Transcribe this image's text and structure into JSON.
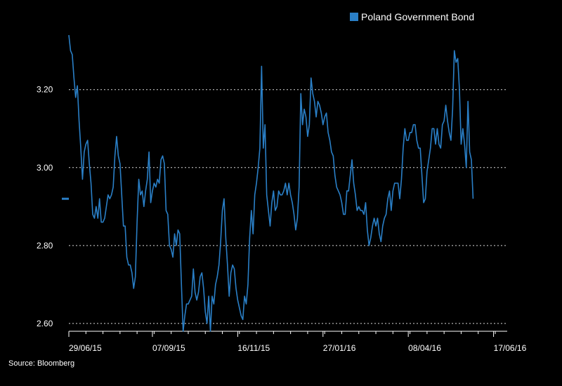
{
  "chart_data": {
    "type": "line",
    "grid": true,
    "legend_position": "top-right",
    "source": "Source: Bloomberg",
    "series": [
      {
        "name": "Poland Government Bond",
        "color": "#2a7fc6",
        "last_value": 2.92,
        "values": [
          3.34,
          3.3,
          3.29,
          3.23,
          3.18,
          3.21,
          3.12,
          3.05,
          2.97,
          3.04,
          3.06,
          3.07,
          3.01,
          2.96,
          2.88,
          2.87,
          2.9,
          2.87,
          2.92,
          2.86,
          2.86,
          2.87,
          2.9,
          2.93,
          2.92,
          2.93,
          2.95,
          3.03,
          3.08,
          3.03,
          3.01,
          2.93,
          2.85,
          2.85,
          2.77,
          2.75,
          2.75,
          2.73,
          2.69,
          2.72,
          2.86,
          2.97,
          2.93,
          2.94,
          2.9,
          2.94,
          2.97,
          3.04,
          2.91,
          2.94,
          2.96,
          2.95,
          2.97,
          2.96,
          3.02,
          3.03,
          3.01,
          2.89,
          2.88,
          2.8,
          2.79,
          2.77,
          2.83,
          2.8,
          2.84,
          2.83,
          2.7,
          2.58,
          2.62,
          2.65,
          2.65,
          2.66,
          2.67,
          2.74,
          2.68,
          2.66,
          2.68,
          2.72,
          2.73,
          2.69,
          2.63,
          2.6,
          2.67,
          2.58,
          2.67,
          2.65,
          2.7,
          2.72,
          2.75,
          2.81,
          2.89,
          2.92,
          2.82,
          2.75,
          2.67,
          2.73,
          2.75,
          2.74,
          2.69,
          2.66,
          2.64,
          2.62,
          2.61,
          2.67,
          2.65,
          2.7,
          2.82,
          2.89,
          2.83,
          2.93,
          2.96,
          3.0,
          3.05,
          3.26,
          3.05,
          3.11,
          2.93,
          2.89,
          2.85,
          2.91,
          2.94,
          2.89,
          2.9,
          2.94,
          2.93,
          2.93,
          2.94,
          2.96,
          2.93,
          2.96,
          2.93,
          2.91,
          2.88,
          2.84,
          2.87,
          2.95,
          3.19,
          3.11,
          3.15,
          3.13,
          3.08,
          3.11,
          3.23,
          3.19,
          3.17,
          3.13,
          3.17,
          3.16,
          3.14,
          3.11,
          3.13,
          3.14,
          3.09,
          3.07,
          3.04,
          3.03,
          2.98,
          2.95,
          2.94,
          2.93,
          2.91,
          2.88,
          2.88,
          2.94,
          2.94,
          2.98,
          3.02,
          2.96,
          2.93,
          2.89,
          2.9,
          2.89,
          2.89,
          2.88,
          2.91,
          2.84,
          2.8,
          2.82,
          2.85,
          2.87,
          2.85,
          2.87,
          2.83,
          2.81,
          2.85,
          2.87,
          2.88,
          2.92,
          2.94,
          2.89,
          2.94,
          2.96,
          2.96,
          2.96,
          2.92,
          2.97,
          3.05,
          3.1,
          3.07,
          3.07,
          3.09,
          3.09,
          3.11,
          3.11,
          3.07,
          3.05,
          3.05,
          2.98,
          2.91,
          2.92,
          2.99,
          3.02,
          3.05,
          3.1,
          3.1,
          3.06,
          3.1,
          3.06,
          3.05,
          3.11,
          3.12,
          3.16,
          3.12,
          3.09,
          3.07,
          3.15,
          3.3,
          3.27,
          3.28,
          3.2,
          3.06,
          3.1,
          3.06,
          3.0,
          3.17,
          3.04,
          3.02,
          2.92
        ]
      }
    ],
    "y_axis": {
      "ticks": [
        "2.60",
        "2.80",
        "3.00",
        "3.20"
      ],
      "tick_values": [
        2.6,
        2.8,
        3.0,
        3.2
      ],
      "ylim": [
        2.58,
        3.34
      ]
    },
    "x_axis": {
      "ticks": [
        "29/06/15",
        "07/09/15",
        "16/11/15",
        "27/01/16",
        "08/04/16",
        "17/06/16"
      ],
      "tick_index": [
        0,
        49,
        99,
        149,
        199,
        249
      ],
      "xlim": [
        0,
        257
      ]
    }
  }
}
